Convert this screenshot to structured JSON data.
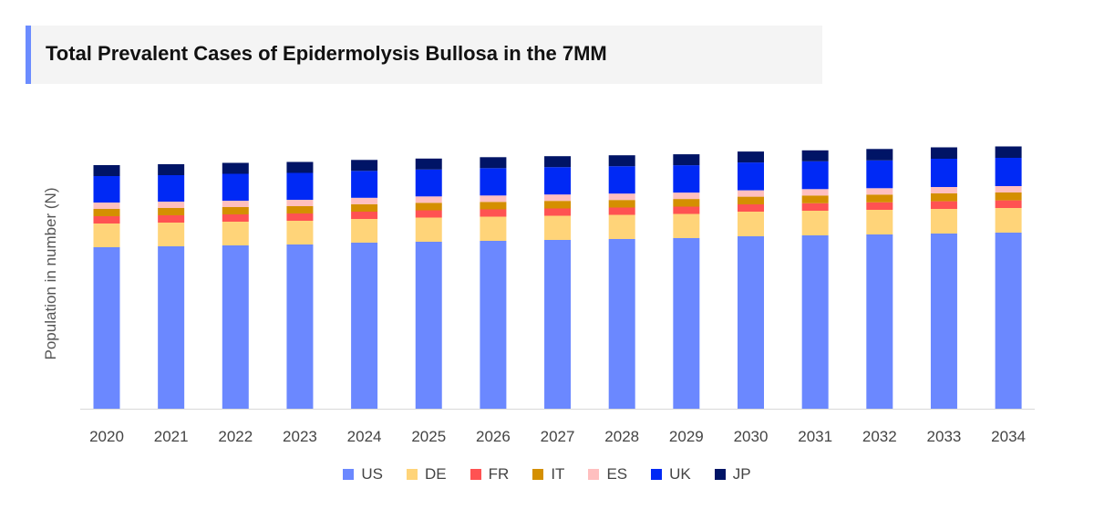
{
  "chart_data": {
    "type": "bar",
    "stacked": true,
    "title": "Total Prevalent Cases of Epidermolysis Bullosa in the 7MM",
    "xlabel": "",
    "ylabel": "Population in number (N)",
    "ylim": [
      0,
      300
    ],
    "y_ticks_shown": false,
    "grid": false,
    "legend_position": "bottom",
    "categories": [
      "2020",
      "2021",
      "2022",
      "2023",
      "2024",
      "2025",
      "2026",
      "2027",
      "2028",
      "2029",
      "2030",
      "2031",
      "2032",
      "2033",
      "2034"
    ],
    "series": [
      {
        "name": "US",
        "color": "#6b88ff",
        "values": [
          177,
          178,
          179,
          180,
          182,
          183,
          184,
          185,
          186,
          187,
          189,
          190,
          191,
          192,
          193
        ]
      },
      {
        "name": "DE",
        "color": "#ffd479",
        "values": [
          26,
          26,
          26,
          26,
          26,
          26.5,
          26.5,
          26.5,
          26.5,
          26.5,
          27,
          27,
          27,
          27,
          27
        ]
      },
      {
        "name": "FR",
        "color": "#ff5252",
        "values": [
          8,
          8,
          8,
          8,
          8,
          8,
          8,
          8,
          8,
          8,
          8,
          8.2,
          8.2,
          8.4,
          8.4
        ]
      },
      {
        "name": "IT",
        "color": "#d48f00",
        "values": [
          8,
          8,
          8,
          8,
          8.2,
          8.2,
          8.2,
          8.3,
          8.3,
          8.4,
          8.4,
          8.5,
          8.5,
          8.6,
          8.6
        ]
      },
      {
        "name": "ES",
        "color": "#ffbfbf",
        "values": [
          7,
          7,
          7,
          7,
          7,
          7,
          7,
          7,
          7,
          7,
          7,
          7,
          7,
          7,
          7
        ]
      },
      {
        "name": "UK",
        "color": "#0029f5",
        "values": [
          29,
          29,
          29.5,
          29.5,
          29.5,
          29.5,
          30,
          30,
          30,
          30,
          30.5,
          30.5,
          30.5,
          31,
          31
        ]
      },
      {
        "name": "JP",
        "color": "#001466",
        "values": [
          12,
          12,
          12,
          12,
          12,
          12,
          12,
          12,
          12,
          12,
          12,
          12,
          12.5,
          12.5,
          12.5
        ]
      }
    ]
  }
}
